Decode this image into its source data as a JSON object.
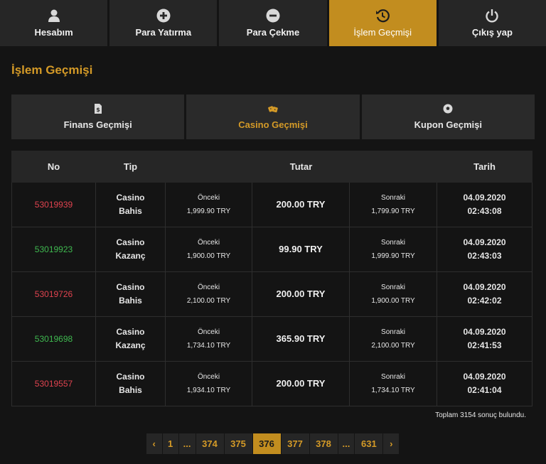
{
  "nav": {
    "items": [
      {
        "label": "Hesabım",
        "icon": "user-icon"
      },
      {
        "label": "Para Yatırma",
        "icon": "plus-circle-icon"
      },
      {
        "label": "Para Çekme",
        "icon": "minus-circle-icon"
      },
      {
        "label": "İşlem Geçmişi",
        "icon": "history-icon",
        "active": true
      },
      {
        "label": "Çıkış yap",
        "icon": "power-icon"
      }
    ]
  },
  "page": {
    "title": "İşlem Geçmişi"
  },
  "subtabs": [
    {
      "label": "Finans Geçmişi",
      "icon": "money-file-icon"
    },
    {
      "label": "Casino Geçmişi",
      "icon": "dice-icon",
      "active": true
    },
    {
      "label": "Kupon Geçmişi",
      "icon": "soccer-ball-icon"
    }
  ],
  "table": {
    "headers": {
      "no": "No",
      "tip": "Tip",
      "tutar": "Tutar",
      "tarih": "Tarih"
    },
    "rows": [
      {
        "no": "53019939",
        "status": "red",
        "tip1": "Casino",
        "tip2": "Bahis",
        "before_label": "Önceki",
        "before": "1,999.90 TRY",
        "amount": "200.00 TRY",
        "after_label": "Sonraki",
        "after": "1,799.90 TRY",
        "date": "04.09.2020",
        "time": "02:43:08"
      },
      {
        "no": "53019923",
        "status": "green",
        "tip1": "Casino",
        "tip2": "Kazanç",
        "before_label": "Önceki",
        "before": "1,900.00 TRY",
        "amount": "99.90 TRY",
        "after_label": "Sonraki",
        "after": "1,999.90 TRY",
        "date": "04.09.2020",
        "time": "02:43:03"
      },
      {
        "no": "53019726",
        "status": "red",
        "tip1": "Casino",
        "tip2": "Bahis",
        "before_label": "Önceki",
        "before": "2,100.00 TRY",
        "amount": "200.00 TRY",
        "after_label": "Sonraki",
        "after": "1,900.00 TRY",
        "date": "04.09.2020",
        "time": "02:42:02"
      },
      {
        "no": "53019698",
        "status": "green",
        "tip1": "Casino",
        "tip2": "Kazanç",
        "before_label": "Önceki",
        "before": "1,734.10 TRY",
        "amount": "365.90 TRY",
        "after_label": "Sonraki",
        "after": "2,100.00 TRY",
        "date": "04.09.2020",
        "time": "02:41:53"
      },
      {
        "no": "53019557",
        "status": "red",
        "tip1": "Casino",
        "tip2": "Bahis",
        "before_label": "Önceki",
        "before": "1,934.10 TRY",
        "amount": "200.00 TRY",
        "after_label": "Sonraki",
        "after": "1,734.10 TRY",
        "date": "04.09.2020",
        "time": "02:41:04"
      }
    ]
  },
  "summary": "Toplam 3154 sonuç bulundu.",
  "pagination": {
    "prev": "‹",
    "next": "›",
    "ellipsis": "...",
    "first": "1",
    "pages": [
      "374",
      "375",
      "376",
      "377",
      "378"
    ],
    "current": "376",
    "last": "631"
  },
  "colors": {
    "accent": "#c28d1f",
    "loss": "#e0434f",
    "win": "#3fb950"
  }
}
